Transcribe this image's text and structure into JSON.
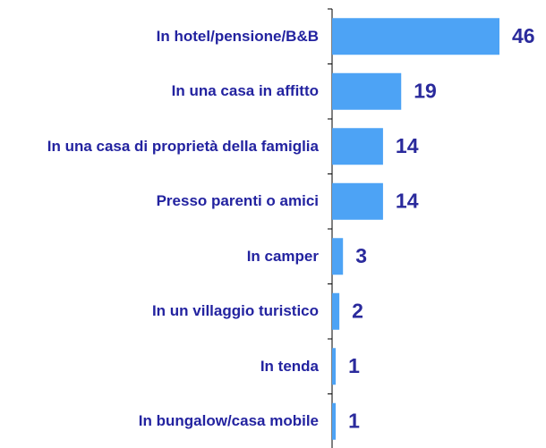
{
  "chart_data": {
    "type": "bar",
    "orientation": "horizontal",
    "categories": [
      "In hotel/pensione/B&B",
      "In una casa in affitto",
      "In una casa di proprietà della famiglia",
      "Presso parenti o amici",
      "In camper",
      "In un villaggio turistico",
      "In tenda",
      "In bungalow/casa mobile"
    ],
    "values": [
      46,
      19,
      14,
      14,
      3,
      2,
      1,
      1
    ],
    "color": "#4da3f5"
  }
}
